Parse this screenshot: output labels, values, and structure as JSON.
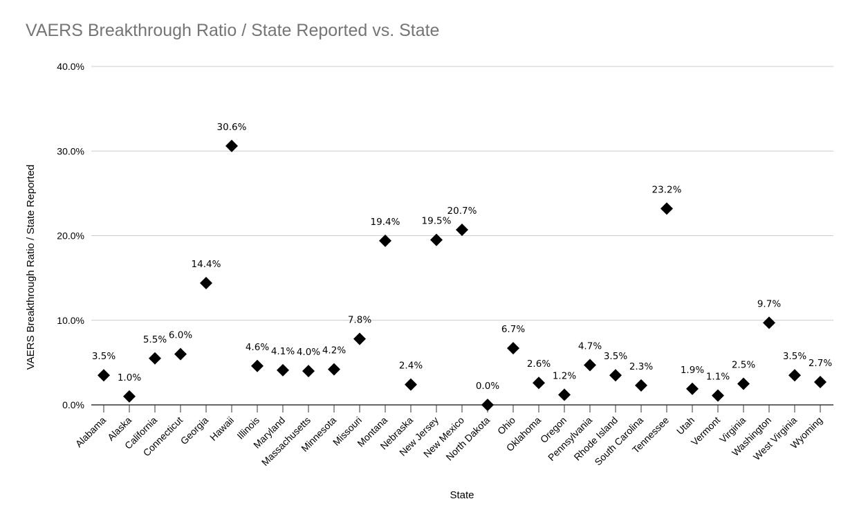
{
  "chart_data": {
    "type": "scatter",
    "title": "VAERS Breakthrough Ratio / State Reported vs. State",
    "xlabel": "State",
    "ylabel": "VAERS Breakthrough Ratio / State Reported",
    "ylim": [
      0,
      40
    ],
    "y_ticks": [
      "0.0%",
      "10.0%",
      "20.0%",
      "30.0%",
      "40.0%"
    ],
    "grid": true,
    "marker": "diamond",
    "marker_color": "#000000",
    "gridline_color": "#cccccc",
    "title_color": "#757575",
    "categories": [
      "Alabama",
      "Alaska",
      "California",
      "Connecticut",
      "Georgia",
      "Hawaii",
      "Illinois",
      "Maryland",
      "Massachusetts",
      "Minnesota",
      "Missouri",
      "Montana",
      "Nebraska",
      "New Jersey",
      "New Mexico",
      "North Dakota",
      "Ohio",
      "Oklahoma",
      "Oregon",
      "Pennsylvania",
      "Rhode Island",
      "South Carolina",
      "Tennessee",
      "Utah",
      "Vermont",
      "Virginia",
      "Washington",
      "West Virginia",
      "Wyoming"
    ],
    "values": [
      3.5,
      1.0,
      5.5,
      6.0,
      14.4,
      30.6,
      4.6,
      4.1,
      4.0,
      4.2,
      7.8,
      19.4,
      2.4,
      19.5,
      20.7,
      0.0,
      6.7,
      2.6,
      1.2,
      4.7,
      3.5,
      2.3,
      23.2,
      1.9,
      1.1,
      2.5,
      9.7,
      3.5,
      2.7
    ],
    "data_labels": [
      "3.5%",
      "1.0%",
      "5.5%",
      "6.0%",
      "14.4%",
      "30.6%",
      "4.6%",
      "4.1%",
      "4.0%",
      "4.2%",
      "7.8%",
      "19.4%",
      "2.4%",
      "19.5%",
      "20.7%",
      "0.0%",
      "6.7%",
      "2.6%",
      "1.2%",
      "4.7%",
      "3.5%",
      "2.3%",
      "23.2%",
      "1.9%",
      "1.1%",
      "2.5%",
      "9.7%",
      "3.5%",
      "2.7%"
    ]
  }
}
